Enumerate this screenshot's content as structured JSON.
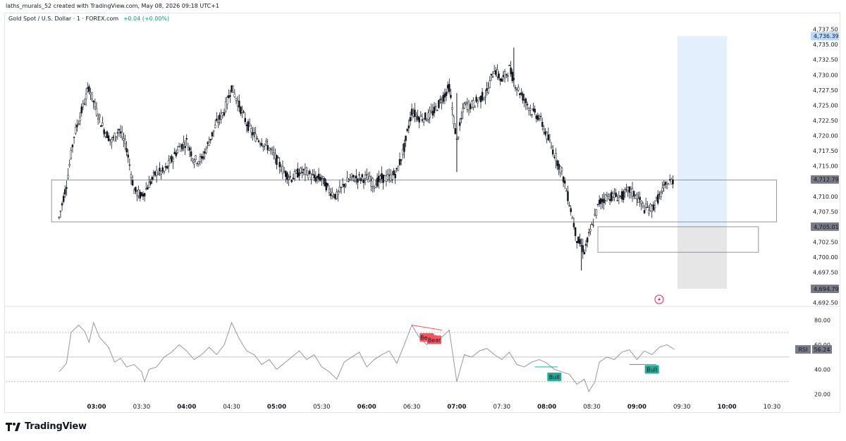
{
  "credit": "laths_murals_52 created with TradingView.com, May 08, 2026 09:18 UTC+1",
  "legend": {
    "symbol": "Gold Spot / U.S. Dollar · 1 · FOREX.com",
    "change": "+0.04 (+0.00%)"
  },
  "brand": {
    "name": "TradingView",
    "logo_icon": "tradingview-logo-icon"
  },
  "colors": {
    "candle": "#131722",
    "zone_border": "#787b86",
    "long_fill": "#e3effd",
    "short_fill": "#e6e6e6",
    "rsi_line": "#9598a1",
    "bear": "#f7525f",
    "bull": "#22ab94",
    "price_label": "#787b86",
    "target_label": "#bbd9fb"
  },
  "chart_data": {
    "type": "candlestick",
    "price_axis": {
      "ticks": [
        "4,737.50",
        "4,735.00",
        "4,732.50",
        "4,730.00",
        "4,727.50",
        "4,725.00",
        "4,722.50",
        "4,720.00",
        "4,717.50",
        "4,715.00",
        "4,710.00",
        "4,707.50",
        "4,702.50",
        "4,700.00",
        "4,697.50",
        "4,692.50"
      ],
      "tick_values": [
        4737.5,
        4735,
        4732.5,
        4730,
        4727.5,
        4725,
        4722.5,
        4720,
        4717.5,
        4715,
        4710,
        4707.5,
        4702.5,
        4700,
        4697.5,
        4692.5
      ],
      "range": [
        4692.0,
        4738.5
      ]
    },
    "price_labels": [
      {
        "text": "4,736.39",
        "value": 4736.39,
        "kind": "target"
      },
      {
        "text": "4,712.79",
        "value": 4712.79,
        "kind": "last"
      },
      {
        "text": "4,705.01",
        "value": 4705.01,
        "kind": "entry"
      },
      {
        "text": "4,694.79",
        "value": 4694.79,
        "kind": "stop"
      }
    ],
    "time_axis": {
      "labels": [
        "03:00",
        "03:30",
        "04:00",
        "04:30",
        "05:00",
        "05:30",
        "06:00",
        "06:30",
        "07:00",
        "07:30",
        "08:00",
        "08:30",
        "09:00",
        "09:30",
        "10:00",
        "10:30"
      ],
      "minutes": [
        180,
        210,
        240,
        270,
        300,
        330,
        360,
        390,
        420,
        450,
        480,
        510,
        540,
        570,
        600,
        630
      ]
    },
    "series": [
      {
        "name": "XAUUSD",
        "points": [
          [
            155,
            4706.5
          ],
          [
            160,
            4712
          ],
          [
            165,
            4720
          ],
          [
            170,
            4724
          ],
          [
            175,
            4728
          ],
          [
            180,
            4724
          ],
          [
            185,
            4721
          ],
          [
            190,
            4719
          ],
          [
            195,
            4721
          ],
          [
            200,
            4718
          ],
          [
            205,
            4711
          ],
          [
            210,
            4710
          ],
          [
            215,
            4712
          ],
          [
            220,
            4714
          ],
          [
            225,
            4714
          ],
          [
            230,
            4716
          ],
          [
            235,
            4718
          ],
          [
            240,
            4719
          ],
          [
            245,
            4716
          ],
          [
            250,
            4716
          ],
          [
            255,
            4719
          ],
          [
            260,
            4722
          ],
          [
            265,
            4724
          ],
          [
            270,
            4728
          ],
          [
            275,
            4725
          ],
          [
            280,
            4722
          ],
          [
            285,
            4720
          ],
          [
            290,
            4719
          ],
          [
            295,
            4718
          ],
          [
            300,
            4716
          ],
          [
            305,
            4714
          ],
          [
            310,
            4713
          ],
          [
            315,
            4714
          ],
          [
            320,
            4714
          ],
          [
            325,
            4713
          ],
          [
            330,
            4713
          ],
          [
            335,
            4711
          ],
          [
            340,
            4710
          ],
          [
            345,
            4712
          ],
          [
            350,
            4713
          ],
          [
            355,
            4713
          ],
          [
            360,
            4713
          ],
          [
            365,
            4712
          ],
          [
            370,
            4713
          ],
          [
            375,
            4713
          ],
          [
            380,
            4714
          ],
          [
            385,
            4718
          ],
          [
            390,
            4724
          ],
          [
            395,
            4723
          ],
          [
            400,
            4723
          ],
          [
            405,
            4724
          ],
          [
            410,
            4726
          ],
          [
            415,
            4728
          ],
          [
            420,
            4719
          ],
          [
            425,
            4725
          ],
          [
            430,
            4725
          ],
          [
            435,
            4726
          ],
          [
            440,
            4727
          ],
          [
            445,
            4731
          ],
          [
            450,
            4729
          ],
          [
            455,
            4731
          ],
          [
            460,
            4728
          ],
          [
            465,
            4726
          ],
          [
            470,
            4724
          ],
          [
            475,
            4723
          ],
          [
            480,
            4720
          ],
          [
            485,
            4717
          ],
          [
            490,
            4714
          ],
          [
            495,
            4709
          ],
          [
            500,
            4703
          ],
          [
            505,
            4701
          ],
          [
            510,
            4705
          ],
          [
            515,
            4709
          ],
          [
            520,
            4710
          ],
          [
            525,
            4710
          ],
          [
            530,
            4710
          ],
          [
            535,
            4711
          ],
          [
            540,
            4710
          ],
          [
            545,
            4708
          ],
          [
            550,
            4708
          ],
          [
            555,
            4710
          ],
          [
            560,
            4712
          ],
          [
            565,
            4712.8
          ]
        ],
        "high": 4734.5,
        "low": 4697.8
      }
    ],
    "annotations": {
      "zones": [
        {
          "name": "upper-rectangle",
          "t_start": 150,
          "t_end": 633,
          "price_top": 4712.7,
          "price_bottom": 4705.8
        },
        {
          "name": "lower-rectangle",
          "t_start": 514,
          "t_end": 621,
          "price_top": 4705.0,
          "price_bottom": 4700.8
        }
      ],
      "long_position": {
        "t_start": 567,
        "t_end": 600,
        "target": 4736.39,
        "entry": 4705.01,
        "stop": 4694.79
      }
    },
    "rsi": {
      "name": "RSI",
      "label": "RSI",
      "value_text": "56.24",
      "value": 56.24,
      "ticks": [
        "80.00",
        "60.00",
        "40.00",
        "20.00"
      ],
      "tick_values": [
        80,
        60,
        40,
        20
      ],
      "bands": [
        70,
        50,
        30
      ],
      "range": [
        15,
        86
      ],
      "points": [
        [
          155,
          38
        ],
        [
          160,
          45
        ],
        [
          163,
          70
        ],
        [
          168,
          76
        ],
        [
          172,
          71
        ],
        [
          175,
          62
        ],
        [
          178,
          78
        ],
        [
          182,
          66
        ],
        [
          188,
          58
        ],
        [
          192,
          46
        ],
        [
          196,
          49
        ],
        [
          200,
          42
        ],
        [
          205,
          44
        ],
        [
          210,
          38
        ],
        [
          212,
          30
        ],
        [
          215,
          40
        ],
        [
          220,
          42
        ],
        [
          225,
          50
        ],
        [
          230,
          54
        ],
        [
          235,
          60
        ],
        [
          240,
          55
        ],
        [
          245,
          48
        ],
        [
          250,
          52
        ],
        [
          255,
          58
        ],
        [
          260,
          52
        ],
        [
          265,
          60
        ],
        [
          270,
          78
        ],
        [
          275,
          65
        ],
        [
          280,
          55
        ],
        [
          285,
          52
        ],
        [
          290,
          44
        ],
        [
          295,
          48
        ],
        [
          300,
          40
        ],
        [
          305,
          45
        ],
        [
          310,
          50
        ],
        [
          315,
          55
        ],
        [
          320,
          48
        ],
        [
          325,
          52
        ],
        [
          330,
          42
        ],
        [
          335,
          38
        ],
        [
          340,
          32
        ],
        [
          345,
          46
        ],
        [
          350,
          50
        ],
        [
          355,
          54
        ],
        [
          360,
          42
        ],
        [
          365,
          48
        ],
        [
          370,
          52
        ],
        [
          375,
          55
        ],
        [
          380,
          45
        ],
        [
          385,
          60
        ],
        [
          390,
          76
        ],
        [
          395,
          66
        ],
        [
          400,
          60
        ],
        [
          405,
          68
        ],
        [
          410,
          66
        ],
        [
          415,
          72
        ],
        [
          420,
          30
        ],
        [
          425,
          52
        ],
        [
          430,
          50
        ],
        [
          435,
          55
        ],
        [
          440,
          57
        ],
        [
          445,
          52
        ],
        [
          450,
          48
        ],
        [
          455,
          54
        ],
        [
          460,
          44
        ],
        [
          465,
          42
        ],
        [
          470,
          46
        ],
        [
          475,
          48
        ],
        [
          480,
          45
        ],
        [
          485,
          40
        ],
        [
          490,
          38
        ],
        [
          495,
          36
        ],
        [
          500,
          28
        ],
        [
          505,
          32
        ],
        [
          508,
          22
        ],
        [
          512,
          30
        ],
        [
          515,
          46
        ],
        [
          520,
          50
        ],
        [
          525,
          48
        ],
        [
          530,
          54
        ],
        [
          535,
          56
        ],
        [
          540,
          48
        ],
        [
          545,
          55
        ],
        [
          550,
          52
        ],
        [
          555,
          58
        ],
        [
          560,
          60
        ],
        [
          565,
          56.24
        ]
      ],
      "signals": [
        {
          "type": "bear",
          "text": "Bear",
          "t": 400,
          "value": 66
        },
        {
          "type": "bear",
          "text": "Bear",
          "t": 405,
          "value": 64
        },
        {
          "type": "bull",
          "text": "Bull",
          "t": 485,
          "value": 34
        },
        {
          "type": "bull",
          "text": "Bull",
          "t": 550,
          "value": 40
        }
      ],
      "divergence_lines": [
        {
          "type": "bear",
          "from": [
            390,
            76
          ],
          "to": [
            410,
            72
          ]
        },
        {
          "type": "bull",
          "from": [
            472,
            42
          ],
          "to": [
            487,
            42
          ]
        },
        {
          "type": "bull",
          "from": [
            535,
            44
          ],
          "to": [
            553,
            44
          ]
        }
      ]
    }
  }
}
